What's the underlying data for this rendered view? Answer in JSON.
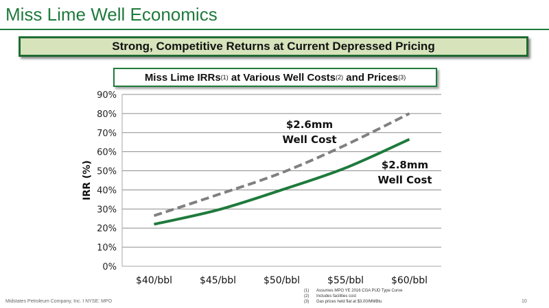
{
  "slide": {
    "title": "Miss Lime Well Economics",
    "banner": "Strong, Competitive Returns at Current Depressed Pricing",
    "footer_left": "Midstates Petroleum Company, Inc. I NYSE: MPO",
    "page_number": "10",
    "footnotes": [
      {
        "num": "(1)",
        "text": "Assumes MPO YE 2016 CGA PUD Type Curve"
      },
      {
        "num": "(2)",
        "text": "Includes facilities cost"
      },
      {
        "num": "(3)",
        "text": "Gas prices held flat at $3.00/MMBtu"
      }
    ],
    "colors": {
      "brand_green": "#1e7a3c",
      "banner_fill": "#d6e3bb",
      "dashed_series": "#808080"
    }
  },
  "chart_data": {
    "type": "line",
    "title_parts": [
      "Miss Lime IRRs",
      "(1)",
      " at Various Well Costs",
      "(2)",
      " and Prices",
      "(3)"
    ],
    "xlabel": "",
    "ylabel": "IRR (%)",
    "categories": [
      "$40/bbl",
      "$45/bbl",
      "$50/bbl",
      "$55/bbl",
      "$60/bbl"
    ],
    "yticks": [
      "0%",
      "10%",
      "20%",
      "30%",
      "40%",
      "50%",
      "60%",
      "70%",
      "80%",
      "90%"
    ],
    "ylim": [
      0,
      90
    ],
    "grid": true,
    "series": [
      {
        "name": "$2.6mm Well Cost",
        "label_lines": [
          "$2.6mm",
          "Well Cost"
        ],
        "style": "dashed",
        "color": "#808080",
        "values": [
          26.5,
          37.5,
          49,
          63.5,
          80
        ]
      },
      {
        "name": "$2.8mm Well Cost",
        "label_lines": [
          "$2.8mm",
          "Well Cost"
        ],
        "style": "solid",
        "color": "#1e7a3c",
        "values": [
          22,
          29.5,
          40,
          51.5,
          66.5
        ]
      }
    ]
  }
}
